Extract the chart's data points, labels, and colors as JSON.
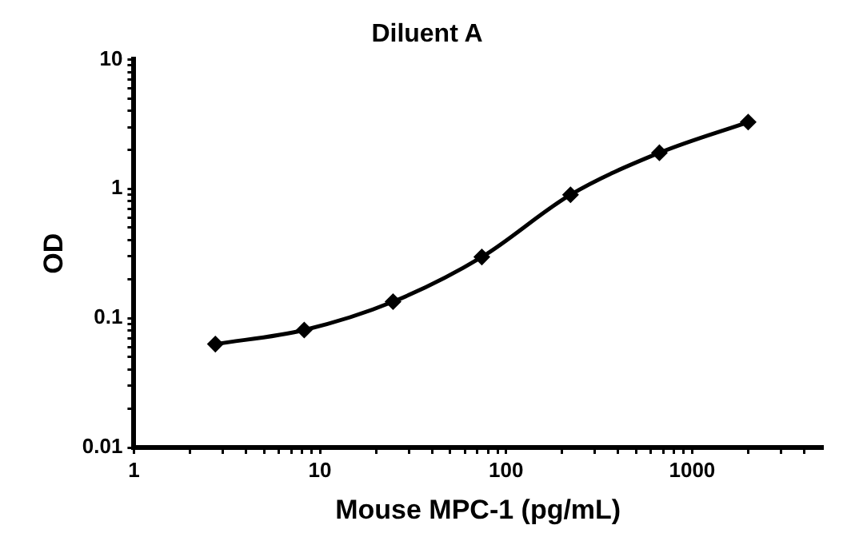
{
  "chart_data": {
    "type": "line",
    "title": "Diluent A",
    "xlabel": "Mouse MPC-1 (pg/mL)",
    "ylabel": "OD",
    "x": [
      2.74,
      8.23,
      24.7,
      74.1,
      222,
      667,
      2000
    ],
    "series": [
      {
        "color": "#000000",
        "values": [
          0.063,
          0.081,
          0.134,
          0.297,
          0.9,
          1.9,
          3.28
        ]
      }
    ],
    "log": "xy",
    "xlim": [
      1,
      5000
    ],
    "ylim": [
      0.01,
      10
    ],
    "xticks": [
      1,
      {
        "value": 2,
        "label": null
      },
      {
        "value": 3,
        "label": null
      },
      {
        "value": 4,
        "label": null
      },
      {
        "value": 5,
        "label": null
      },
      {
        "value": 6,
        "label": null
      },
      {
        "value": 7,
        "label": null
      },
      {
        "value": 8,
        "label": null
      },
      {
        "value": 9,
        "label": null
      },
      10,
      {
        "value": 20,
        "label": null
      },
      {
        "value": 30,
        "label": null
      },
      {
        "value": 40,
        "label": null
      },
      {
        "value": 50,
        "label": null
      },
      {
        "value": 60,
        "label": null
      },
      {
        "value": 70,
        "label": null
      },
      {
        "value": 80,
        "label": null
      },
      {
        "value": 90,
        "label": null
      },
      100,
      {
        "value": 200,
        "label": null
      },
      {
        "value": 300,
        "label": null
      },
      {
        "value": 400,
        "label": null
      },
      {
        "value": 500,
        "label": null
      },
      {
        "value": 600,
        "label": null
      },
      {
        "value": 700,
        "label": null
      },
      {
        "value": 800,
        "label": null
      },
      {
        "value": 900,
        "label": null
      },
      1000,
      {
        "value": 2000,
        "label": null
      },
      {
        "value": 3000,
        "label": null
      },
      {
        "value": 4000,
        "label": null
      }
    ],
    "yticks": [
      0.01,
      {
        "value": 0.02,
        "label": null
      },
      {
        "value": 0.03,
        "label": null
      },
      {
        "value": 0.04,
        "label": null
      },
      {
        "value": 0.05,
        "label": null
      },
      {
        "value": 0.06,
        "label": null
      },
      {
        "value": 0.07,
        "label": null
      },
      {
        "value": 0.08,
        "label": null
      },
      {
        "value": 0.09,
        "label": null
      },
      0.1,
      {
        "value": 0.2,
        "label": null
      },
      {
        "value": 0.3,
        "label": null
      },
      {
        "value": 0.4,
        "label": null
      },
      {
        "value": 0.5,
        "label": null
      },
      {
        "value": 0.6,
        "label": null
      },
      {
        "value": 0.7,
        "label": null
      },
      {
        "value": 0.8,
        "label": null
      },
      {
        "value": 0.9,
        "label": null
      },
      1,
      {
        "value": 2,
        "label": null
      },
      {
        "value": 3,
        "label": null
      },
      {
        "value": 4,
        "label": null
      },
      {
        "value": 5,
        "label": null
      },
      {
        "value": 6,
        "label": null
      },
      {
        "value": 7,
        "label": null
      },
      {
        "value": 8,
        "label": null
      },
      {
        "value": 9,
        "label": null
      },
      10
    ],
    "grid": false,
    "legend": false,
    "marker": "diamond",
    "line_style": "solid"
  }
}
